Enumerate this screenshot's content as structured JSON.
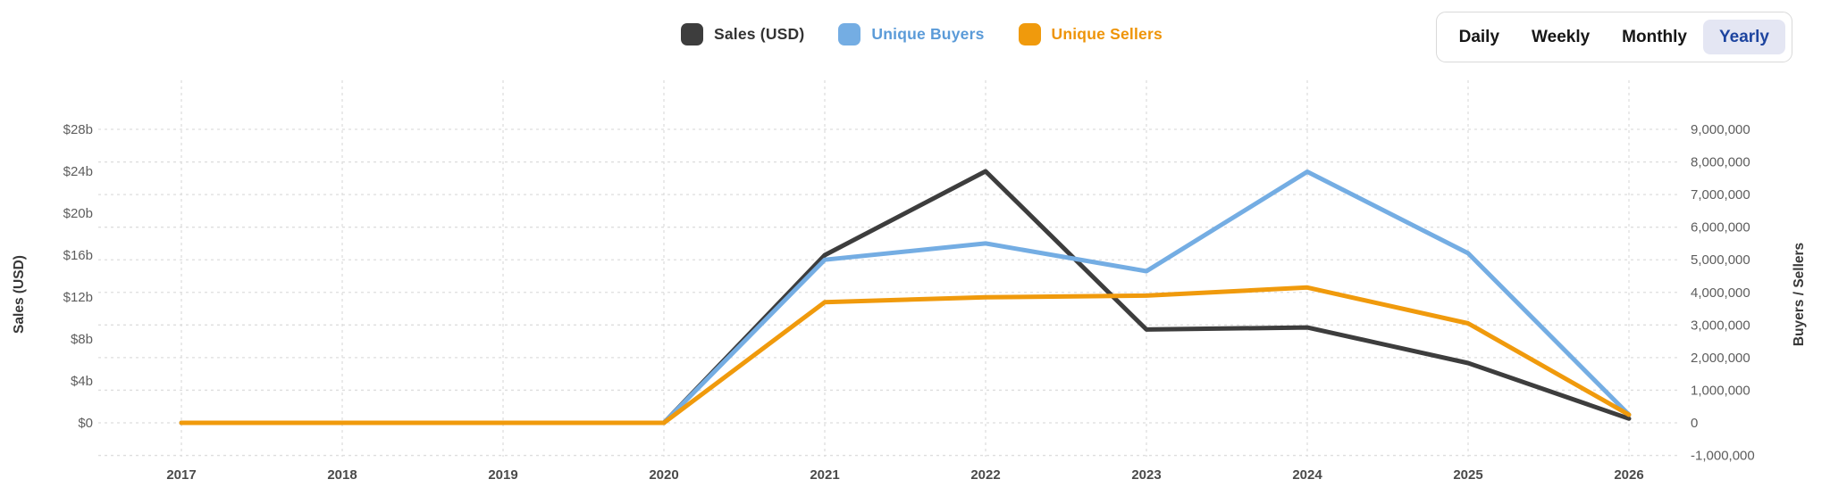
{
  "legend": [
    {
      "label": "Sales (USD)",
      "color": "#3d3d3d",
      "text_color": "#333333"
    },
    {
      "label": "Unique Buyers",
      "color": "#74ade3",
      "text_color": "#5b9bd8"
    },
    {
      "label": "Unique Sellers",
      "color": "#f09a0c",
      "text_color": "#ee9408"
    }
  ],
  "range_buttons": {
    "options": [
      "Daily",
      "Weekly",
      "Monthly",
      "Yearly"
    ],
    "selected": "Yearly",
    "selected_text_color": "#1d449f",
    "selected_bg_color": "#e4e6f3"
  },
  "chart_data": {
    "type": "line",
    "title": "",
    "categories": [
      "2017",
      "2018",
      "2019",
      "2020",
      "2021",
      "2022",
      "2023",
      "2024",
      "2025",
      "2026"
    ],
    "series": [
      {
        "name": "Sales (USD)",
        "axis": "left",
        "color": "#3d3d3d",
        "unit": "USD billions",
        "values": [
          0,
          0,
          0,
          0,
          16,
          24,
          8.9,
          9.1,
          5.7,
          0.4
        ]
      },
      {
        "name": "Unique Buyers",
        "axis": "right",
        "color": "#74ade3",
        "unit": "count",
        "values": [
          0,
          0,
          0,
          0,
          5000000,
          5500000,
          4650000,
          7700000,
          5200000,
          250000
        ]
      },
      {
        "name": "Unique Sellers",
        "axis": "right",
        "color": "#f09a0c",
        "unit": "count",
        "values": [
          0,
          0,
          0,
          0,
          3700000,
          3850000,
          3900000,
          4150000,
          3050000,
          250000
        ]
      }
    ],
    "left_axis": {
      "title": "Sales (USD)",
      "tick_labels": [
        "$0",
        "$4b",
        "$8b",
        "$12b",
        "$16b",
        "$20b",
        "$24b",
        "$28b"
      ],
      "tick_values": [
        0,
        4,
        8,
        12,
        16,
        20,
        24,
        28
      ],
      "range": [
        0,
        28
      ]
    },
    "right_axis": {
      "title": "Buyers / Sellers",
      "tick_labels": [
        "-1,000,000",
        "0",
        "1,000,000",
        "2,000,000",
        "3,000,000",
        "4,000,000",
        "5,000,000",
        "6,000,000",
        "7,000,000",
        "8,000,000",
        "9,000,000"
      ],
      "tick_values": [
        -1000000,
        0,
        1000000,
        2000000,
        3000000,
        4000000,
        5000000,
        6000000,
        7000000,
        8000000,
        9000000
      ],
      "range": [
        -1000000,
        9000000
      ]
    },
    "grid": "dashed",
    "legend_position": "top-center",
    "grid_color": "#dedede"
  }
}
